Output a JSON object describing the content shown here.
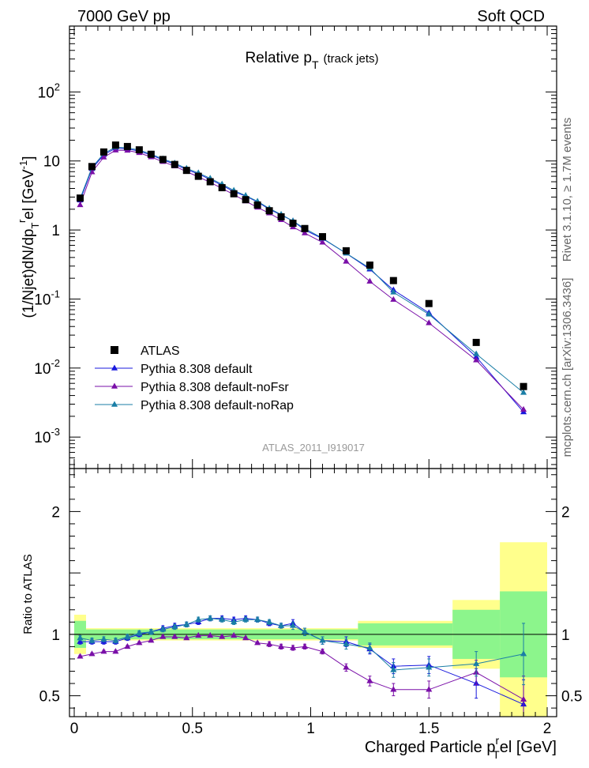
{
  "header": {
    "left": "7000 GeV pp",
    "right": "Soft QCD"
  },
  "labels": {
    "title_main": "Relative p",
    "title_sub": "T",
    "title_tail": "(track jets)",
    "ylabel_main": "(1/Njet)dN/dp",
    "ylabel_sub": "T",
    "ylabel_sup": "r",
    "ylabel_tail": "el [GeV",
    "ylabel_exp": "-1",
    "ylabel_close": "]",
    "xlabel_main": "Charged Particle p",
    "xlabel_sup": "r",
    "xlabel_sub": "T",
    "xlabel_tail": "el [GeV]",
    "ratio_ylabel": "Ratio to ATLAS",
    "analysis_id": "ATLAS_2011_I919017",
    "side_rivet": "Rivet 3.1.10, ≥ 1.7M events",
    "side_mcplots": "mcplots.cern.ch [arXiv:1306.3436]"
  },
  "main_ticks": {
    "y": [
      {
        "v": 0.001,
        "mant": "10",
        "exp": "-3"
      },
      {
        "v": 0.01,
        "mant": "10",
        "exp": "-2"
      },
      {
        "v": 0.1,
        "mant": "10",
        "exp": "-1"
      },
      {
        "v": 1,
        "mant": "1",
        "exp": ""
      },
      {
        "v": 10,
        "mant": "10",
        "exp": ""
      },
      {
        "v": 100,
        "mant": "10",
        "exp": "2"
      }
    ]
  },
  "ratio_ticks": {
    "y": [
      {
        "v": 0.5,
        "label": "0.5"
      },
      {
        "v": 1,
        "label": "1"
      },
      {
        "v": 2,
        "label": "2"
      }
    ],
    "x": [
      {
        "v": 0,
        "label": "0"
      },
      {
        "v": 0.5,
        "label": "0.5"
      },
      {
        "v": 1,
        "label": "1"
      },
      {
        "v": 1.5,
        "label": "1.5"
      },
      {
        "v": 2,
        "label": "2"
      }
    ]
  },
  "chart_data": {
    "type": "scatter",
    "x_bins": [
      0.025,
      0.075,
      0.125,
      0.175,
      0.225,
      0.275,
      0.325,
      0.375,
      0.425,
      0.475,
      0.525,
      0.575,
      0.625,
      0.675,
      0.725,
      0.775,
      0.825,
      0.875,
      0.925,
      0.975,
      1.05,
      1.15,
      1.25,
      1.35,
      1.5,
      1.7,
      1.9
    ],
    "xlim": [
      -0.02,
      2.04
    ],
    "ylim": [
      0.00035,
      900
    ],
    "yscale": "log",
    "ratio_ylim": [
      0.33,
      2.35
    ],
    "legend_position": "bottom-left",
    "reference": {
      "name": "ATLAS",
      "values": [
        2.9,
        8.3,
        13.5,
        17.0,
        16.2,
        14.5,
        12.5,
        10.5,
        8.9,
        7.3,
        6.0,
        5.0,
        4.1,
        3.35,
        2.75,
        2.3,
        1.9,
        1.55,
        1.25,
        1.05,
        0.8,
        0.5,
        0.31,
        0.185,
        0.086,
        0.0235,
        0.0054
      ],
      "uncertainty_inner": [
        [
          0,
          0.05,
          0.11
        ],
        [
          0.05,
          1.2,
          0.04
        ],
        [
          1.2,
          1.6,
          0.09
        ],
        [
          1.6,
          1.8,
          0.2
        ],
        [
          1.8,
          2.0,
          0.35
        ]
      ],
      "uncertainty_outer": [
        [
          0,
          0.05,
          0.16
        ],
        [
          0.05,
          1.2,
          0.05
        ],
        [
          1.2,
          1.6,
          0.11
        ],
        [
          1.6,
          1.8,
          0.28
        ],
        [
          1.8,
          2.0,
          0.75
        ]
      ],
      "color": "#000000"
    },
    "series": [
      {
        "name": "Pythia 8.308 default",
        "color": "#1818dd",
        "values": [
          2.7,
          7.7,
          12.3,
          15.3,
          15.0,
          13.9,
          12.2,
          10.4,
          9.0,
          7.5,
          6.5,
          5.4,
          4.45,
          3.6,
          3.1,
          2.55,
          2.0,
          1.65,
          1.35,
          1.0,
          0.75,
          0.46,
          0.27,
          0.135,
          0.063,
          0.0145,
          0.0023
        ],
        "ratio": [
          0.94,
          0.94,
          0.94,
          0.94,
          0.97,
          1.0,
          1.02,
          1.05,
          1.07,
          1.08,
          1.1,
          1.13,
          1.13,
          1.12,
          1.13,
          1.12,
          1.09,
          1.07,
          1.09,
          1.02,
          0.95,
          0.94,
          0.88,
          0.74,
          0.75,
          0.6,
          0.43
        ],
        "ratio_err": [
          0.02,
          0.02,
          0.02,
          0.02,
          0.02,
          0.02,
          0.02,
          0.02,
          0.02,
          0.02,
          0.02,
          0.02,
          0.02,
          0.02,
          0.02,
          0.02,
          0.02,
          0.02,
          0.03,
          0.03,
          0.03,
          0.04,
          0.04,
          0.06,
          0.07,
          0.12,
          0.2
        ],
        "marker": "triangle"
      },
      {
        "name": "Pythia 8.308 default-noFsr",
        "color": "#7a0fa8",
        "values": [
          2.3,
          6.9,
          11.3,
          14.3,
          14.2,
          13.1,
          11.4,
          9.75,
          8.4,
          7.0,
          5.9,
          4.9,
          4.0,
          3.25,
          2.62,
          2.12,
          1.75,
          1.4,
          1.1,
          0.9,
          0.66,
          0.35,
          0.18,
          0.098,
          0.045,
          0.013,
          0.0025
        ],
        "ratio": [
          0.82,
          0.84,
          0.86,
          0.86,
          0.9,
          0.93,
          0.95,
          0.98,
          0.98,
          0.97,
          0.99,
          0.99,
          0.98,
          0.99,
          0.97,
          0.93,
          0.92,
          0.9,
          0.89,
          0.9,
          0.86,
          0.73,
          0.62,
          0.55,
          0.55,
          0.69,
          0.47
        ],
        "ratio_err": [
          0.01,
          0.01,
          0.01,
          0.01,
          0.01,
          0.01,
          0.01,
          0.01,
          0.01,
          0.01,
          0.01,
          0.01,
          0.01,
          0.01,
          0.01,
          0.01,
          0.02,
          0.02,
          0.02,
          0.02,
          0.02,
          0.03,
          0.04,
          0.05,
          0.07,
          0.1,
          0.19
        ],
        "marker": "triangle"
      },
      {
        "name": "Pythia 8.308 default-noRap",
        "color": "#1a7ea6",
        "values": [
          2.85,
          8.0,
          12.8,
          15.9,
          15.5,
          14.4,
          12.6,
          10.7,
          9.3,
          7.8,
          6.7,
          5.6,
          4.6,
          3.75,
          3.15,
          2.6,
          2.05,
          1.68,
          1.35,
          1.05,
          0.76,
          0.46,
          0.28,
          0.125,
          0.06,
          0.016,
          0.0044
        ],
        "ratio": [
          0.97,
          0.95,
          0.96,
          0.95,
          0.98,
          1.01,
          1.02,
          1.04,
          1.06,
          1.08,
          1.12,
          1.13,
          1.12,
          1.1,
          1.12,
          1.12,
          1.1,
          1.07,
          1.07,
          1.02,
          0.95,
          0.92,
          0.89,
          0.71,
          0.73,
          0.76,
          0.84
        ],
        "ratio_err": [
          0.02,
          0.02,
          0.02,
          0.02,
          0.02,
          0.02,
          0.02,
          0.02,
          0.02,
          0.02,
          0.02,
          0.02,
          0.02,
          0.02,
          0.02,
          0.02,
          0.02,
          0.02,
          0.03,
          0.03,
          0.03,
          0.04,
          0.04,
          0.06,
          0.07,
          0.1,
          0.25
        ],
        "marker": "triangle"
      }
    ]
  }
}
